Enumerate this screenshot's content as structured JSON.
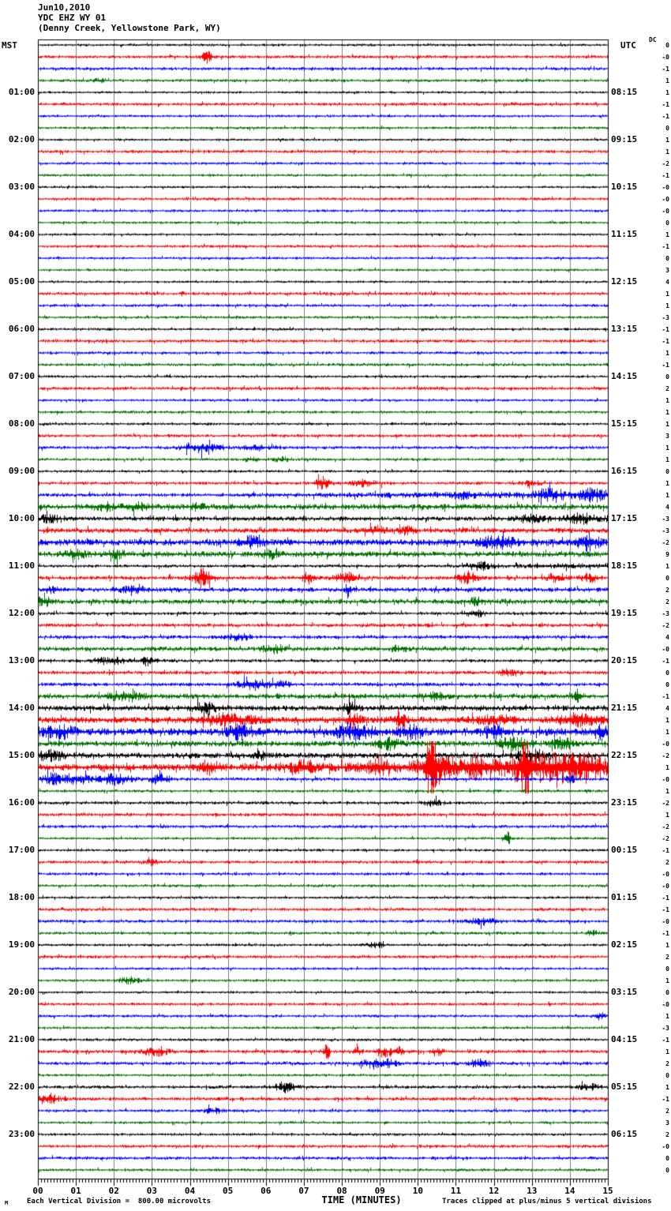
{
  "header": {
    "date": "Jun10,2010",
    "station": "YDC EHZ WY 01",
    "location": "(Denny Creek, Yellowstone Park, WY)"
  },
  "axes": {
    "left_title": "MST",
    "right_title": "UTC",
    "dc_title": "DC",
    "x_title": "TIME (MINUTES)",
    "x_ticks": [
      "00",
      "01",
      "02",
      "03",
      "04",
      "05",
      "06",
      "07",
      "08",
      "09",
      "10",
      "11",
      "12",
      "13",
      "14",
      "15"
    ]
  },
  "footer": {
    "left": "Each Vertical Division =  800.00 microvolts",
    "corner": "M",
    "center": "TIME (MINUTES)",
    "right": "Traces clipped at plus/minus 5 vertical divisions"
  },
  "chart_data": {
    "type": "line",
    "subtype": "helicorder-seismogram",
    "x_range_minutes": [
      0,
      15
    ],
    "minutes_per_row": 15,
    "rows_count": 96,
    "grid": "vertical gray lines at each minute",
    "colors_cycle": [
      "#000000",
      "#ff0000",
      "#0000ff",
      "#007000"
    ],
    "grid_color": "#808080",
    "left_labels": [
      "01:00",
      "02:00",
      "03:00",
      "04:00",
      "05:00",
      "06:00",
      "07:00",
      "08:00",
      "09:00",
      "10:00",
      "11:00",
      "12:00",
      "13:00",
      "14:00",
      "15:00",
      "16:00",
      "17:00",
      "18:00",
      "19:00",
      "20:00",
      "21:00",
      "22:00",
      "23:00"
    ],
    "right_labels": [
      "08:15",
      "09:15",
      "10:15",
      "11:15",
      "12:15",
      "13:15",
      "14:15",
      "15:15",
      "16:15",
      "17:15",
      "18:15",
      "19:15",
      "20:15",
      "21:15",
      "22:15",
      "23:15",
      "00:15",
      "01:15",
      "02:15",
      "03:15",
      "04:15",
      "05:15",
      "06:15"
    ],
    "dc_values": [
      "0",
      "-0",
      "-1",
      "1",
      "1",
      "-1",
      "-1",
      "0",
      "1",
      "1",
      "-2",
      "-1",
      "-0",
      "-0",
      "-0",
      "0",
      "1",
      "-1",
      "0",
      "3",
      "4",
      "1",
      "1",
      "-3",
      "-1",
      "-1",
      "1",
      "-1",
      "0",
      "2",
      "1",
      "1",
      "1",
      "3",
      "1",
      "1",
      "0",
      "1",
      "1",
      "4",
      "-3",
      "-3",
      "-2",
      "9",
      "1",
      "0",
      "2",
      "2",
      "-3",
      "-2",
      "4",
      "-0",
      "-1",
      "0",
      "0",
      "-1",
      "4",
      "1",
      "1",
      "-0",
      "-2",
      "1",
      "-0",
      "1",
      "-2",
      "1",
      "-2",
      "-2",
      "-1",
      "2",
      "-0",
      "-0",
      "-1",
      "-1",
      "-0",
      "-1",
      "1",
      "2",
      "0",
      "1",
      "0",
      "-0",
      "1",
      "-3",
      "-1",
      "1",
      "2",
      "0",
      "1",
      "-1",
      "2",
      "3",
      "2",
      "-0",
      "0",
      "0"
    ],
    "rows": [
      {
        "a": 1.0
      },
      {
        "a": 1.2,
        "e": [
          [
            4.45,
            0.3,
            4
          ]
        ]
      },
      {
        "a": 1.2
      },
      {
        "a": 1.1,
        "e": [
          [
            1.6,
            0.4,
            1.5
          ]
        ]
      },
      {
        "a": 0.9
      },
      {
        "a": 1.2
      },
      {
        "a": 1.0
      },
      {
        "a": 1.0
      },
      {
        "a": 0.9
      },
      {
        "a": 1.2
      },
      {
        "a": 1.0
      },
      {
        "a": 1.0
      },
      {
        "a": 0.9
      },
      {
        "a": 1.1
      },
      {
        "a": 1.0
      },
      {
        "a": 1.0
      },
      {
        "a": 0.9
      },
      {
        "a": 1.1
      },
      {
        "a": 1.0
      },
      {
        "a": 1.0
      },
      {
        "a": 0.9
      },
      {
        "a": 1.2
      },
      {
        "a": 1.1
      },
      {
        "a": 1.1
      },
      {
        "a": 1.0
      },
      {
        "a": 1.2
      },
      {
        "a": 1.1
      },
      {
        "a": 1.2
      },
      {
        "a": 1.0
      },
      {
        "a": 1.2
      },
      {
        "a": 1.0
      },
      {
        "a": 1.1
      },
      {
        "a": 1.0
      },
      {
        "a": 1.2
      },
      {
        "a": 1.2,
        "e": [
          [
            4.3,
            1.0,
            3.5
          ],
          [
            5.8,
            1.0,
            1.2
          ]
        ]
      },
      {
        "a": 1.1,
        "e": [
          [
            5.6,
            0.4,
            1.5
          ],
          [
            6.4,
            0.4,
            1.5
          ]
        ]
      },
      {
        "a": 1.0
      },
      {
        "a": 1.2,
        "e": [
          [
            7.45,
            0.4,
            4.5
          ],
          [
            8.6,
            0.9,
            2
          ],
          [
            13.0,
            0.5,
            1.5
          ]
        ]
      },
      {
        "a": 1.4,
        "ramp": [
          5,
          1.6
        ],
        "e": [
          [
            11.2,
            0.5,
            2.5
          ],
          [
            13.5,
            0.7,
            3.5
          ],
          [
            14.6,
            0.5,
            3.5
          ]
        ]
      },
      {
        "a": 2.1,
        "e": [
          [
            1.8,
            0.7,
            2.5
          ],
          [
            2.6,
            0.5,
            2.5
          ],
          [
            4.2,
            0.4,
            2.5
          ]
        ]
      },
      {
        "a": 1.7,
        "ramp": [
          12,
          0.8
        ],
        "e": [
          [
            0.3,
            0.5,
            2.5
          ],
          [
            12.9,
            0.6,
            2.5
          ],
          [
            14.3,
            0.8,
            2.5
          ]
        ]
      },
      {
        "a": 1.9,
        "e": [
          [
            8.9,
            0.5,
            2.5
          ],
          [
            9.7,
            0.4,
            2.5
          ]
        ]
      },
      {
        "a": 2.4,
        "e": [
          [
            5.6,
            0.7,
            3.5
          ],
          [
            12.1,
            0.9,
            4
          ],
          [
            14.5,
            0.6,
            5
          ]
        ]
      },
      {
        "a": 2.1,
        "e": [
          [
            1.0,
            0.6,
            2.5
          ],
          [
            2.1,
            0.5,
            2.5
          ],
          [
            6.1,
            0.5,
            2.5
          ]
        ]
      },
      {
        "a": 1.2,
        "ramp": [
          10.5,
          1.2
        ],
        "e": [
          [
            11.6,
            0.6,
            2.5
          ]
        ]
      },
      {
        "a": 1.5,
        "e": [
          [
            4.35,
            0.5,
            6.5
          ],
          [
            7.1,
            0.25,
            4.5
          ],
          [
            8.1,
            0.6,
            3.5
          ],
          [
            11.3,
            0.5,
            4.5
          ],
          [
            13.6,
            0.5,
            2.5
          ],
          [
            14.5,
            0.5,
            2.5
          ]
        ]
      },
      {
        "a": 1.7,
        "e": [
          [
            0.4,
            0.4,
            2.5
          ],
          [
            2.5,
            0.6,
            2.5
          ],
          [
            8.15,
            0.12,
            5.5
          ]
        ]
      },
      {
        "a": 1.9,
        "e": [
          [
            0.15,
            0.4,
            3.5
          ],
          [
            11.5,
            0.4,
            2.5
          ]
        ]
      },
      {
        "a": 1.2,
        "e": [
          [
            11.5,
            0.5,
            2.5
          ]
        ]
      },
      {
        "a": 1.4
      },
      {
        "a": 1.4,
        "e": [
          [
            5.3,
            0.6,
            2.5
          ]
        ]
      },
      {
        "a": 1.7,
        "e": [
          [
            6.2,
            0.6,
            2.5
          ],
          [
            9.5,
            0.4,
            1.8
          ]
        ]
      },
      {
        "a": 1.2,
        "e": [
          [
            1.9,
            0.9,
            2.5
          ],
          [
            2.9,
            0.4,
            3.5
          ]
        ]
      },
      {
        "a": 1.4,
        "e": [
          [
            12.4,
            0.5,
            2.5
          ]
        ]
      },
      {
        "a": 1.4,
        "e": [
          [
            5.7,
            0.9,
            3.5
          ],
          [
            6.4,
            0.4,
            2.5
          ]
        ]
      },
      {
        "a": 1.9,
        "e": [
          [
            2.3,
            0.9,
            3
          ],
          [
            10.5,
            0.5,
            2.5
          ],
          [
            14.2,
            0.25,
            4.5
          ]
        ]
      },
      {
        "a": 2.1,
        "e": [
          [
            4.4,
            0.6,
            3.5
          ],
          [
            8.2,
            0.4,
            3.5
          ]
        ]
      },
      {
        "a": 2.4,
        "e": [
          [
            5.0,
            1.6,
            3.5
          ],
          [
            8.3,
            0.35,
            5.5
          ],
          [
            9.5,
            0.35,
            5.5
          ],
          [
            12.0,
            1.2,
            2.5
          ],
          [
            14.3,
            1.1,
            4.5
          ]
        ]
      },
      {
        "a": 2.8,
        "e": [
          [
            0.5,
            0.8,
            4.5
          ],
          [
            5.3,
            0.7,
            4.5
          ],
          [
            8.3,
            1.1,
            4.5
          ],
          [
            9.8,
            0.6,
            4.5
          ],
          [
            12.0,
            0.7,
            3.5
          ],
          [
            14.8,
            0.4,
            4.5
          ]
        ]
      },
      {
        "a": 2.1,
        "e": [
          [
            9.2,
            0.6,
            3.5
          ],
          [
            12.5,
            0.9,
            3.5
          ],
          [
            13.8,
            0.6,
            3.5
          ]
        ]
      },
      {
        "a": 2.1,
        "e": [
          [
            0.3,
            0.7,
            3.5
          ],
          [
            5.8,
            0.4,
            2.5
          ],
          [
            13.0,
            0.9,
            3.5
          ]
        ]
      },
      {
        "a": 2.6,
        "ramp": [
          5,
          3.2
        ],
        "e": [
          [
            4.5,
            0.6,
            4
          ],
          [
            7.0,
            0.6,
            4
          ],
          [
            9.0,
            0.6,
            5
          ],
          [
            10.35,
            0.25,
            26
          ],
          [
            10.5,
            0.9,
            8
          ],
          [
            11.5,
            0.6,
            7
          ],
          [
            12.85,
            0.2,
            26
          ],
          [
            12.9,
            1.3,
            8
          ],
          [
            13.8,
            0.7,
            7
          ],
          [
            14.5,
            0.6,
            8
          ]
        ]
      },
      {
        "a": 1.3,
        "e": [
          [
            0.4,
            0.6,
            4
          ],
          [
            1.0,
            0.8,
            3
          ],
          [
            2.0,
            0.9,
            4
          ],
          [
            3.2,
            0.5,
            4
          ],
          [
            14.0,
            0.25,
            3
          ]
        ]
      },
      {
        "a": 1.1
      },
      {
        "a": 1.2,
        "e": [
          [
            10.4,
            0.4,
            2.5
          ]
        ]
      },
      {
        "a": 1.3
      },
      {
        "a": 1.2
      },
      {
        "a": 1.0,
        "e": [
          [
            12.35,
            0.12,
            8
          ]
        ]
      },
      {
        "a": 1.0
      },
      {
        "a": 1.2,
        "e": [
          [
            3.0,
            0.3,
            1.8
          ]
        ]
      },
      {
        "a": 1.1
      },
      {
        "a": 1.1
      },
      {
        "a": 1.0
      },
      {
        "a": 1.2
      },
      {
        "a": 1.2,
        "e": [
          [
            11.7,
            0.7,
            2.2
          ]
        ]
      },
      {
        "a": 1.1,
        "e": [
          [
            14.6,
            0.3,
            2.5
          ]
        ]
      },
      {
        "a": 1.0,
        "e": [
          [
            8.9,
            0.5,
            1.8
          ]
        ]
      },
      {
        "a": 1.2
      },
      {
        "a": 1.0
      },
      {
        "a": 1.0,
        "e": [
          [
            2.4,
            0.5,
            2.5
          ]
        ]
      },
      {
        "a": 0.9
      },
      {
        "a": 1.1
      },
      {
        "a": 1.1,
        "e": [
          [
            14.8,
            0.3,
            2.5
          ]
        ]
      },
      {
        "a": 1.0
      },
      {
        "a": 1.1
      },
      {
        "a": 1.3,
        "e": [
          [
            3.1,
            0.6,
            3.5
          ],
          [
            7.6,
            0.15,
            5.5
          ],
          [
            8.4,
            0.25,
            2.5
          ],
          [
            9.1,
            0.45,
            3.5
          ],
          [
            9.5,
            0.25,
            2.5
          ],
          [
            10.5,
            0.35,
            2.5
          ]
        ]
      },
      {
        "a": 1.3,
        "e": [
          [
            8.8,
            0.7,
            2.5
          ],
          [
            9.3,
            0.4,
            2.5
          ],
          [
            11.6,
            0.5,
            2.5
          ]
        ]
      },
      {
        "a": 1.0
      },
      {
        "a": 1.2,
        "e": [
          [
            6.5,
            0.6,
            3.5
          ],
          [
            14.5,
            0.6,
            2
          ]
        ]
      },
      {
        "a": 1.3,
        "e": [
          [
            0.25,
            0.6,
            3.5
          ]
        ]
      },
      {
        "a": 1.1,
        "e": [
          [
            4.6,
            0.5,
            1.8
          ]
        ]
      },
      {
        "a": 1.0
      },
      {
        "a": 1.0
      },
      {
        "a": 1.2
      },
      {
        "a": 1.2
      },
      {
        "a": 1.1
      }
    ]
  }
}
